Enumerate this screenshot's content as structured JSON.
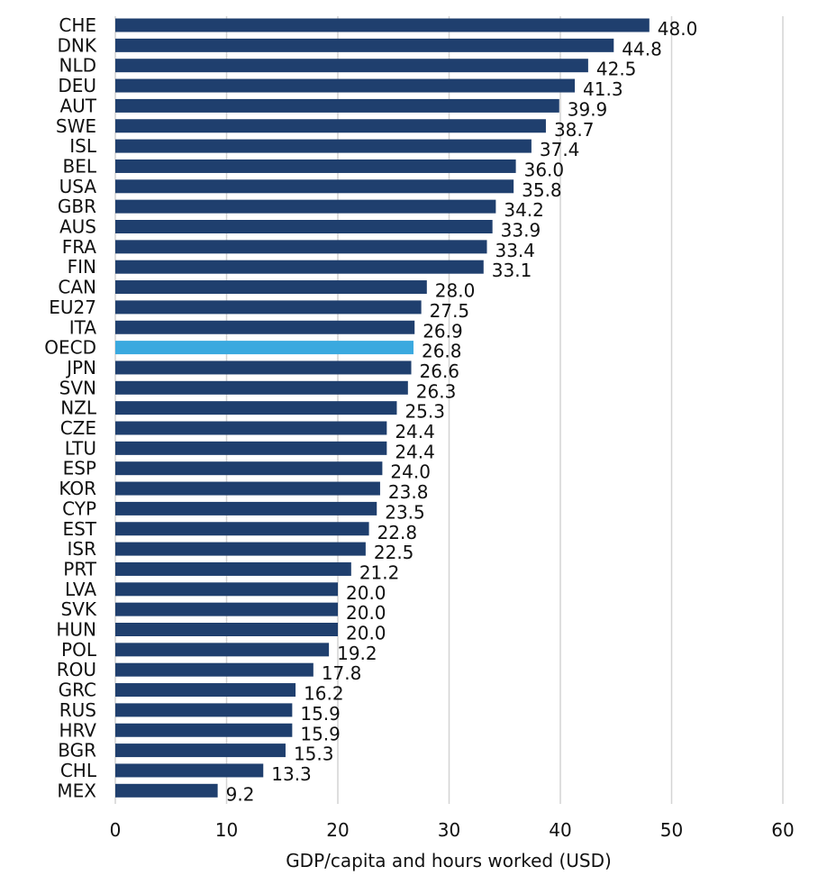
{
  "colors": {
    "bar": "#1f3f6e",
    "highlight": "#3aa9df",
    "grid": "#d4d4d4"
  },
  "chart_data": {
    "type": "bar",
    "orientation": "horizontal",
    "title": "",
    "xlabel": "GDP/capita and hours worked (USD)",
    "ylabel": "",
    "xlim": [
      0,
      60
    ],
    "xticks": [
      0,
      10,
      20,
      30,
      40,
      50,
      60
    ],
    "grid": true,
    "highlight_category": "OECD",
    "categories": [
      "CHE",
      "DNK",
      "NLD",
      "DEU",
      "AUT",
      "SWE",
      "ISL",
      "BEL",
      "USA",
      "GBR",
      "AUS",
      "FRA",
      "FIN",
      "CAN",
      "EU27",
      "ITA",
      "OECD",
      "JPN",
      "SVN",
      "NZL",
      "CZE",
      "LTU",
      "ESP",
      "KOR",
      "CYP",
      "EST",
      "ISR",
      "PRT",
      "LVA",
      "SVK",
      "HUN",
      "POL",
      "ROU",
      "GRC",
      "RUS",
      "HRV",
      "BGR",
      "CHL",
      "MEX"
    ],
    "values": [
      48.0,
      44.8,
      42.5,
      41.3,
      39.9,
      38.7,
      37.4,
      36.0,
      35.8,
      34.2,
      33.9,
      33.4,
      33.1,
      28.0,
      27.5,
      26.9,
      26.8,
      26.6,
      26.3,
      25.3,
      24.4,
      24.4,
      24.0,
      23.8,
      23.5,
      22.8,
      22.5,
      21.2,
      20.0,
      20.0,
      20.0,
      19.2,
      17.8,
      16.2,
      15.9,
      15.9,
      15.3,
      13.3,
      9.2
    ],
    "value_labels": [
      "48.0",
      "44.8",
      "42.5",
      "41.3",
      "39.9",
      "38.7",
      "37.4",
      "36.0",
      "35.8",
      "34.2",
      "33.9",
      "33.4",
      "33.1",
      "28.0",
      "27.5",
      "26.9",
      "26.8",
      "26.6",
      "26.3",
      "25.3",
      "24.4",
      "24.4",
      "24.0",
      "23.8",
      "23.5",
      "22.8",
      "22.5",
      "21.2",
      "20.0",
      "20.0",
      "20.0",
      "19.2",
      "17.8",
      "16.2",
      "15.9",
      "15.9",
      "15.3",
      "13.3",
      "9.2"
    ]
  }
}
